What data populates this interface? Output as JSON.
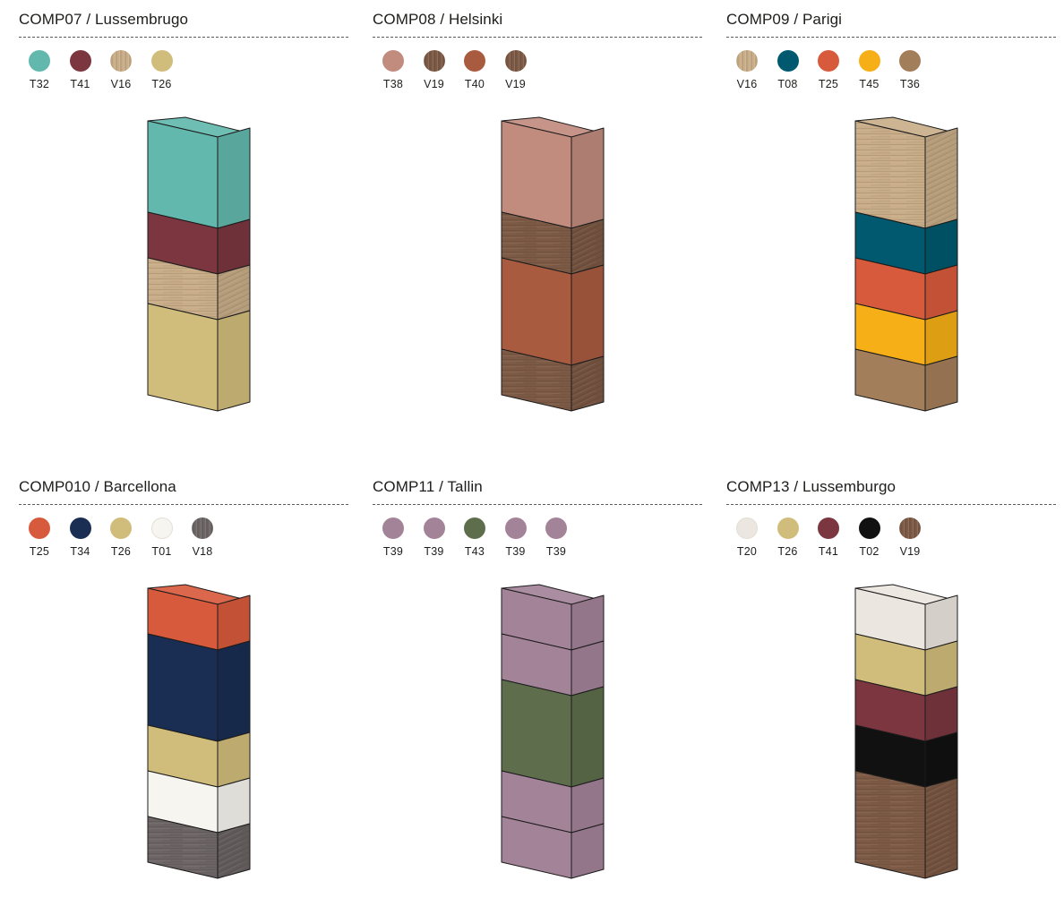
{
  "compositions": [
    {
      "title": "COMP07 / Lussembrugo",
      "swatches": [
        {
          "code": "T32",
          "color": "#63b8ae",
          "texture": "solid"
        },
        {
          "code": "T41",
          "color": "#7b363f",
          "texture": "solid"
        },
        {
          "code": "V16",
          "color": "#c9ad88",
          "texture": "wood"
        },
        {
          "code": "T26",
          "color": "#d1bd7b",
          "texture": "solid"
        }
      ],
      "modules": [
        {
          "height": 2,
          "color": "#63b8ae",
          "texture": "solid"
        },
        {
          "height": 1,
          "color": "#7b363f",
          "texture": "solid"
        },
        {
          "height": 1,
          "color": "#c9ad88",
          "texture": "wood"
        },
        {
          "height": 2,
          "color": "#d1bd7b",
          "texture": "solid"
        }
      ]
    },
    {
      "title": "COMP08 / Helsinki",
      "swatches": [
        {
          "code": "T38",
          "color": "#c18b7e",
          "texture": "solid"
        },
        {
          "code": "V19",
          "color": "#7d5a45",
          "texture": "wood"
        },
        {
          "code": "T40",
          "color": "#a95b40",
          "texture": "solid"
        },
        {
          "code": "V19",
          "color": "#7d5a45",
          "texture": "wood"
        }
      ],
      "modules": [
        {
          "height": 2,
          "color": "#c18b7e",
          "texture": "solid"
        },
        {
          "height": 1,
          "color": "#7d5a45",
          "texture": "wood"
        },
        {
          "height": 2,
          "color": "#a95b40",
          "texture": "solid"
        },
        {
          "height": 1,
          "color": "#7d5a45",
          "texture": "wood"
        }
      ]
    },
    {
      "title": "COMP09 / Parigi",
      "swatches": [
        {
          "code": "V16",
          "color": "#c9ad88",
          "texture": "wood"
        },
        {
          "code": "T08",
          "color": "#00596f",
          "texture": "solid"
        },
        {
          "code": "T25",
          "color": "#d85a3c",
          "texture": "solid"
        },
        {
          "code": "T45",
          "color": "#f6af16",
          "texture": "solid"
        },
        {
          "code": "T36",
          "color": "#a37e5a",
          "texture": "solid"
        }
      ],
      "modules": [
        {
          "height": 2,
          "color": "#c9ad88",
          "texture": "wood"
        },
        {
          "height": 1,
          "color": "#00596f",
          "texture": "solid"
        },
        {
          "height": 1,
          "color": "#d85a3c",
          "texture": "solid"
        },
        {
          "height": 1,
          "color": "#f6af16",
          "texture": "solid"
        },
        {
          "height": 1,
          "color": "#a37e5a",
          "texture": "solid"
        }
      ]
    },
    {
      "title": "COMP010 / Barcellona",
      "swatches": [
        {
          "code": "T25",
          "color": "#d85a3c",
          "texture": "solid"
        },
        {
          "code": "T34",
          "color": "#1a2d52",
          "texture": "solid"
        },
        {
          "code": "T26",
          "color": "#d1bd7b",
          "texture": "solid"
        },
        {
          "code": "T01",
          "color": "#f7f5f0",
          "texture": "solid"
        },
        {
          "code": "V18",
          "color": "#6c6465",
          "texture": "wood"
        }
      ],
      "modules": [
        {
          "height": 1,
          "color": "#d85a3c",
          "texture": "solid"
        },
        {
          "height": 2,
          "color": "#1a2d52",
          "texture": "solid"
        },
        {
          "height": 1,
          "color": "#d1bd7b",
          "texture": "solid"
        },
        {
          "height": 1,
          "color": "#f7f5f0",
          "texture": "solid"
        },
        {
          "height": 1,
          "color": "#6c6465",
          "texture": "wood"
        }
      ]
    },
    {
      "title": "COMP11 / Tallin",
      "swatches": [
        {
          "code": "T39",
          "color": "#a38398",
          "texture": "solid"
        },
        {
          "code": "T39",
          "color": "#a38398",
          "texture": "solid"
        },
        {
          "code": "T43",
          "color": "#5e6e4d",
          "texture": "solid"
        },
        {
          "code": "T39",
          "color": "#a38398",
          "texture": "solid"
        },
        {
          "code": "T39",
          "color": "#a38398",
          "texture": "solid"
        }
      ],
      "modules": [
        {
          "height": 1,
          "color": "#a38398",
          "texture": "solid"
        },
        {
          "height": 1,
          "color": "#a38398",
          "texture": "solid"
        },
        {
          "height": 2,
          "color": "#5e6e4d",
          "texture": "solid"
        },
        {
          "height": 1,
          "color": "#a38398",
          "texture": "solid"
        },
        {
          "height": 1,
          "color": "#a38398",
          "texture": "solid"
        }
      ]
    },
    {
      "title": "COMP13 / Lussemburgo",
      "swatches": [
        {
          "code": "T20",
          "color": "#ebe6df",
          "texture": "solid"
        },
        {
          "code": "T26",
          "color": "#d1bd7b",
          "texture": "solid"
        },
        {
          "code": "T41",
          "color": "#7b363f",
          "texture": "solid"
        },
        {
          "code": "T02",
          "color": "#111111",
          "texture": "solid"
        },
        {
          "code": "V19",
          "color": "#7d5a45",
          "texture": "wood"
        }
      ],
      "modules": [
        {
          "height": 1,
          "color": "#ebe6df",
          "texture": "solid"
        },
        {
          "height": 1,
          "color": "#d1bd7b",
          "texture": "solid"
        },
        {
          "height": 1,
          "color": "#7b363f",
          "texture": "solid"
        },
        {
          "height": 1,
          "color": "#111111",
          "texture": "solid"
        },
        {
          "height": 2,
          "color": "#7d5a45",
          "texture": "wood"
        }
      ]
    }
  ]
}
